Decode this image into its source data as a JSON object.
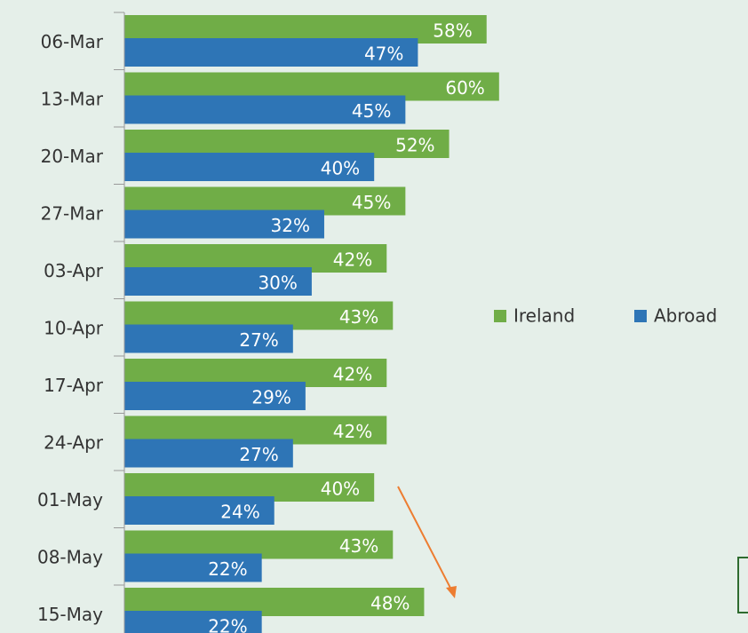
{
  "chart_data": {
    "type": "bar",
    "orientation": "horizontal",
    "categories": [
      "06-Mar",
      "13-Mar",
      "20-Mar",
      "27-Mar",
      "03-Apr",
      "10-Apr",
      "17-Apr",
      "24-Apr",
      "01-May",
      "08-May",
      "15-May"
    ],
    "series": [
      {
        "name": "Ireland",
        "color": "#70ad47",
        "values": [
          58,
          60,
          52,
          45,
          42,
          43,
          42,
          42,
          40,
          43,
          48
        ],
        "value_labels": [
          "58%",
          "60%",
          "52%",
          "45%",
          "42%",
          "43%",
          "42%",
          "42%",
          "40%",
          "43%",
          "48%"
        ]
      },
      {
        "name": "Abroad",
        "color": "#2e75b6",
        "values": [
          47,
          45,
          40,
          32,
          30,
          27,
          29,
          27,
          24,
          22,
          22
        ],
        "value_labels": [
          "47%",
          "45%",
          "40%",
          "32%",
          "30%",
          "27%",
          "29%",
          "27%",
          "24%",
          "22%",
          "22%"
        ]
      }
    ],
    "xlim": [
      0,
      100
    ],
    "legend": "right"
  }
}
